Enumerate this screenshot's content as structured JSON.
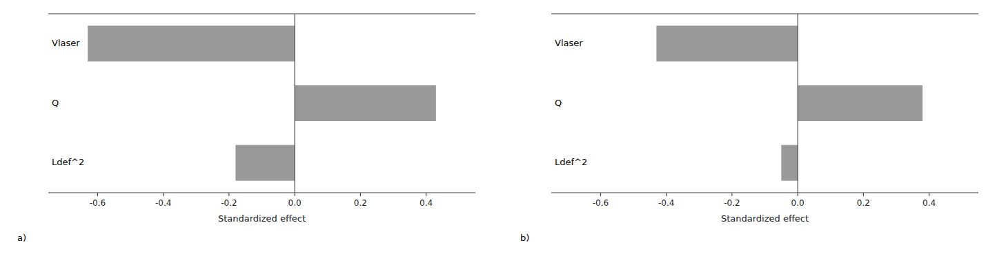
{
  "chart_data": [
    {
      "type": "bar",
      "orientation": "horizontal",
      "title": "a)",
      "categories": [
        "Ldef^2",
        "Q",
        "Vlaser"
      ],
      "values": [
        -0.18,
        0.43,
        -0.63
      ],
      "color": "#999999",
      "xlabel": "Standardized effect",
      "xlim": [
        -0.75,
        0.55
      ],
      "xticks": [
        -0.6,
        -0.4,
        -0.2,
        {
          "value": 0.0,
          "label": "0.0"
        },
        0.2,
        0.4
      ]
    },
    {
      "type": "bar",
      "orientation": "horizontal",
      "title": "b)",
      "categories": [
        "Ldef^2",
        "Q",
        "Vlaser"
      ],
      "values": [
        -0.05,
        0.38,
        -0.43
      ],
      "color": "#999999",
      "xlabel": "Standardized effect",
      "xlim": [
        -0.75,
        0.55
      ],
      "xticks": [
        -0.6,
        -0.4,
        -0.2,
        {
          "value": 0.0,
          "label": "0.0"
        },
        0.2,
        0.4
      ]
    }
  ]
}
